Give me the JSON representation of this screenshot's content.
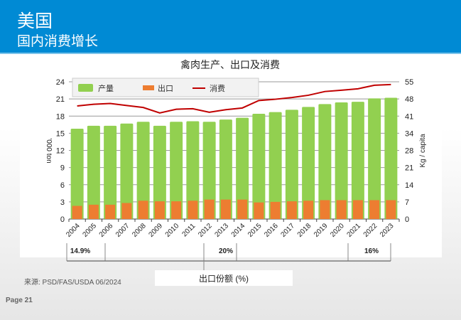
{
  "header": {
    "title": "美国",
    "subtitle": "国内消费增长"
  },
  "footer": {
    "source": "来源: PSD/FAS/USDA 06/2024",
    "page": "Page 21"
  },
  "colors": {
    "header": "#008ad4",
    "production": "#92d050",
    "export": "#ed7d31",
    "consumption": "#c00000"
  },
  "chart_data": {
    "type": "bar",
    "title": "禽肉生产、出口及消费",
    "ylabel": "'000 ton",
    "y2label": "Kg / capita",
    "ylim": [
      0,
      24
    ],
    "y2lim": [
      0,
      55
    ],
    "yticks": [
      0,
      3,
      6,
      9,
      12,
      15,
      18,
      21,
      24
    ],
    "y2ticks": [
      0,
      7,
      14,
      21,
      28,
      34,
      41,
      48,
      55
    ],
    "grid": true,
    "legend_position": "top-left",
    "categories": [
      "2004",
      "2005",
      "2006",
      "2007",
      "2008",
      "2009",
      "2010",
      "2011",
      "2012",
      "2013",
      "2014",
      "2015",
      "2016",
      "2017",
      "2018",
      "2019",
      "2020",
      "2021",
      "2022",
      "2023"
    ],
    "series": [
      {
        "name": "产量",
        "type": "bar",
        "axis": "left",
        "values": [
          15.8,
          16.3,
          16.3,
          16.7,
          17.0,
          16.3,
          17.0,
          17.1,
          17.0,
          17.4,
          17.7,
          18.4,
          18.7,
          19.1,
          19.6,
          20.1,
          20.4,
          20.5,
          21.1,
          21.2
        ]
      },
      {
        "name": "出口",
        "type": "bar",
        "axis": "left",
        "values": [
          2.3,
          2.5,
          2.5,
          2.8,
          3.2,
          3.1,
          3.1,
          3.2,
          3.4,
          3.4,
          3.4,
          2.9,
          3.0,
          3.1,
          3.2,
          3.3,
          3.3,
          3.3,
          3.3,
          3.3
        ]
      },
      {
        "name": "消费",
        "type": "line",
        "axis": "right",
        "values": [
          45.3,
          46.0,
          46.3,
          45.5,
          44.7,
          42.5,
          44.0,
          44.2,
          42.8,
          43.8,
          44.5,
          47.5,
          48.0,
          48.7,
          49.6,
          51.1,
          51.6,
          52.2,
          53.6,
          53.9
        ]
      }
    ],
    "annotations": {
      "label": "出口份额 (%)",
      "brackets": [
        {
          "from": "2004",
          "to": "2005",
          "value": "14.9%"
        },
        {
          "from": "2012",
          "to": "2013",
          "value": "20%"
        },
        {
          "from": "2021",
          "to": "2023",
          "value": "16%"
        }
      ]
    }
  }
}
